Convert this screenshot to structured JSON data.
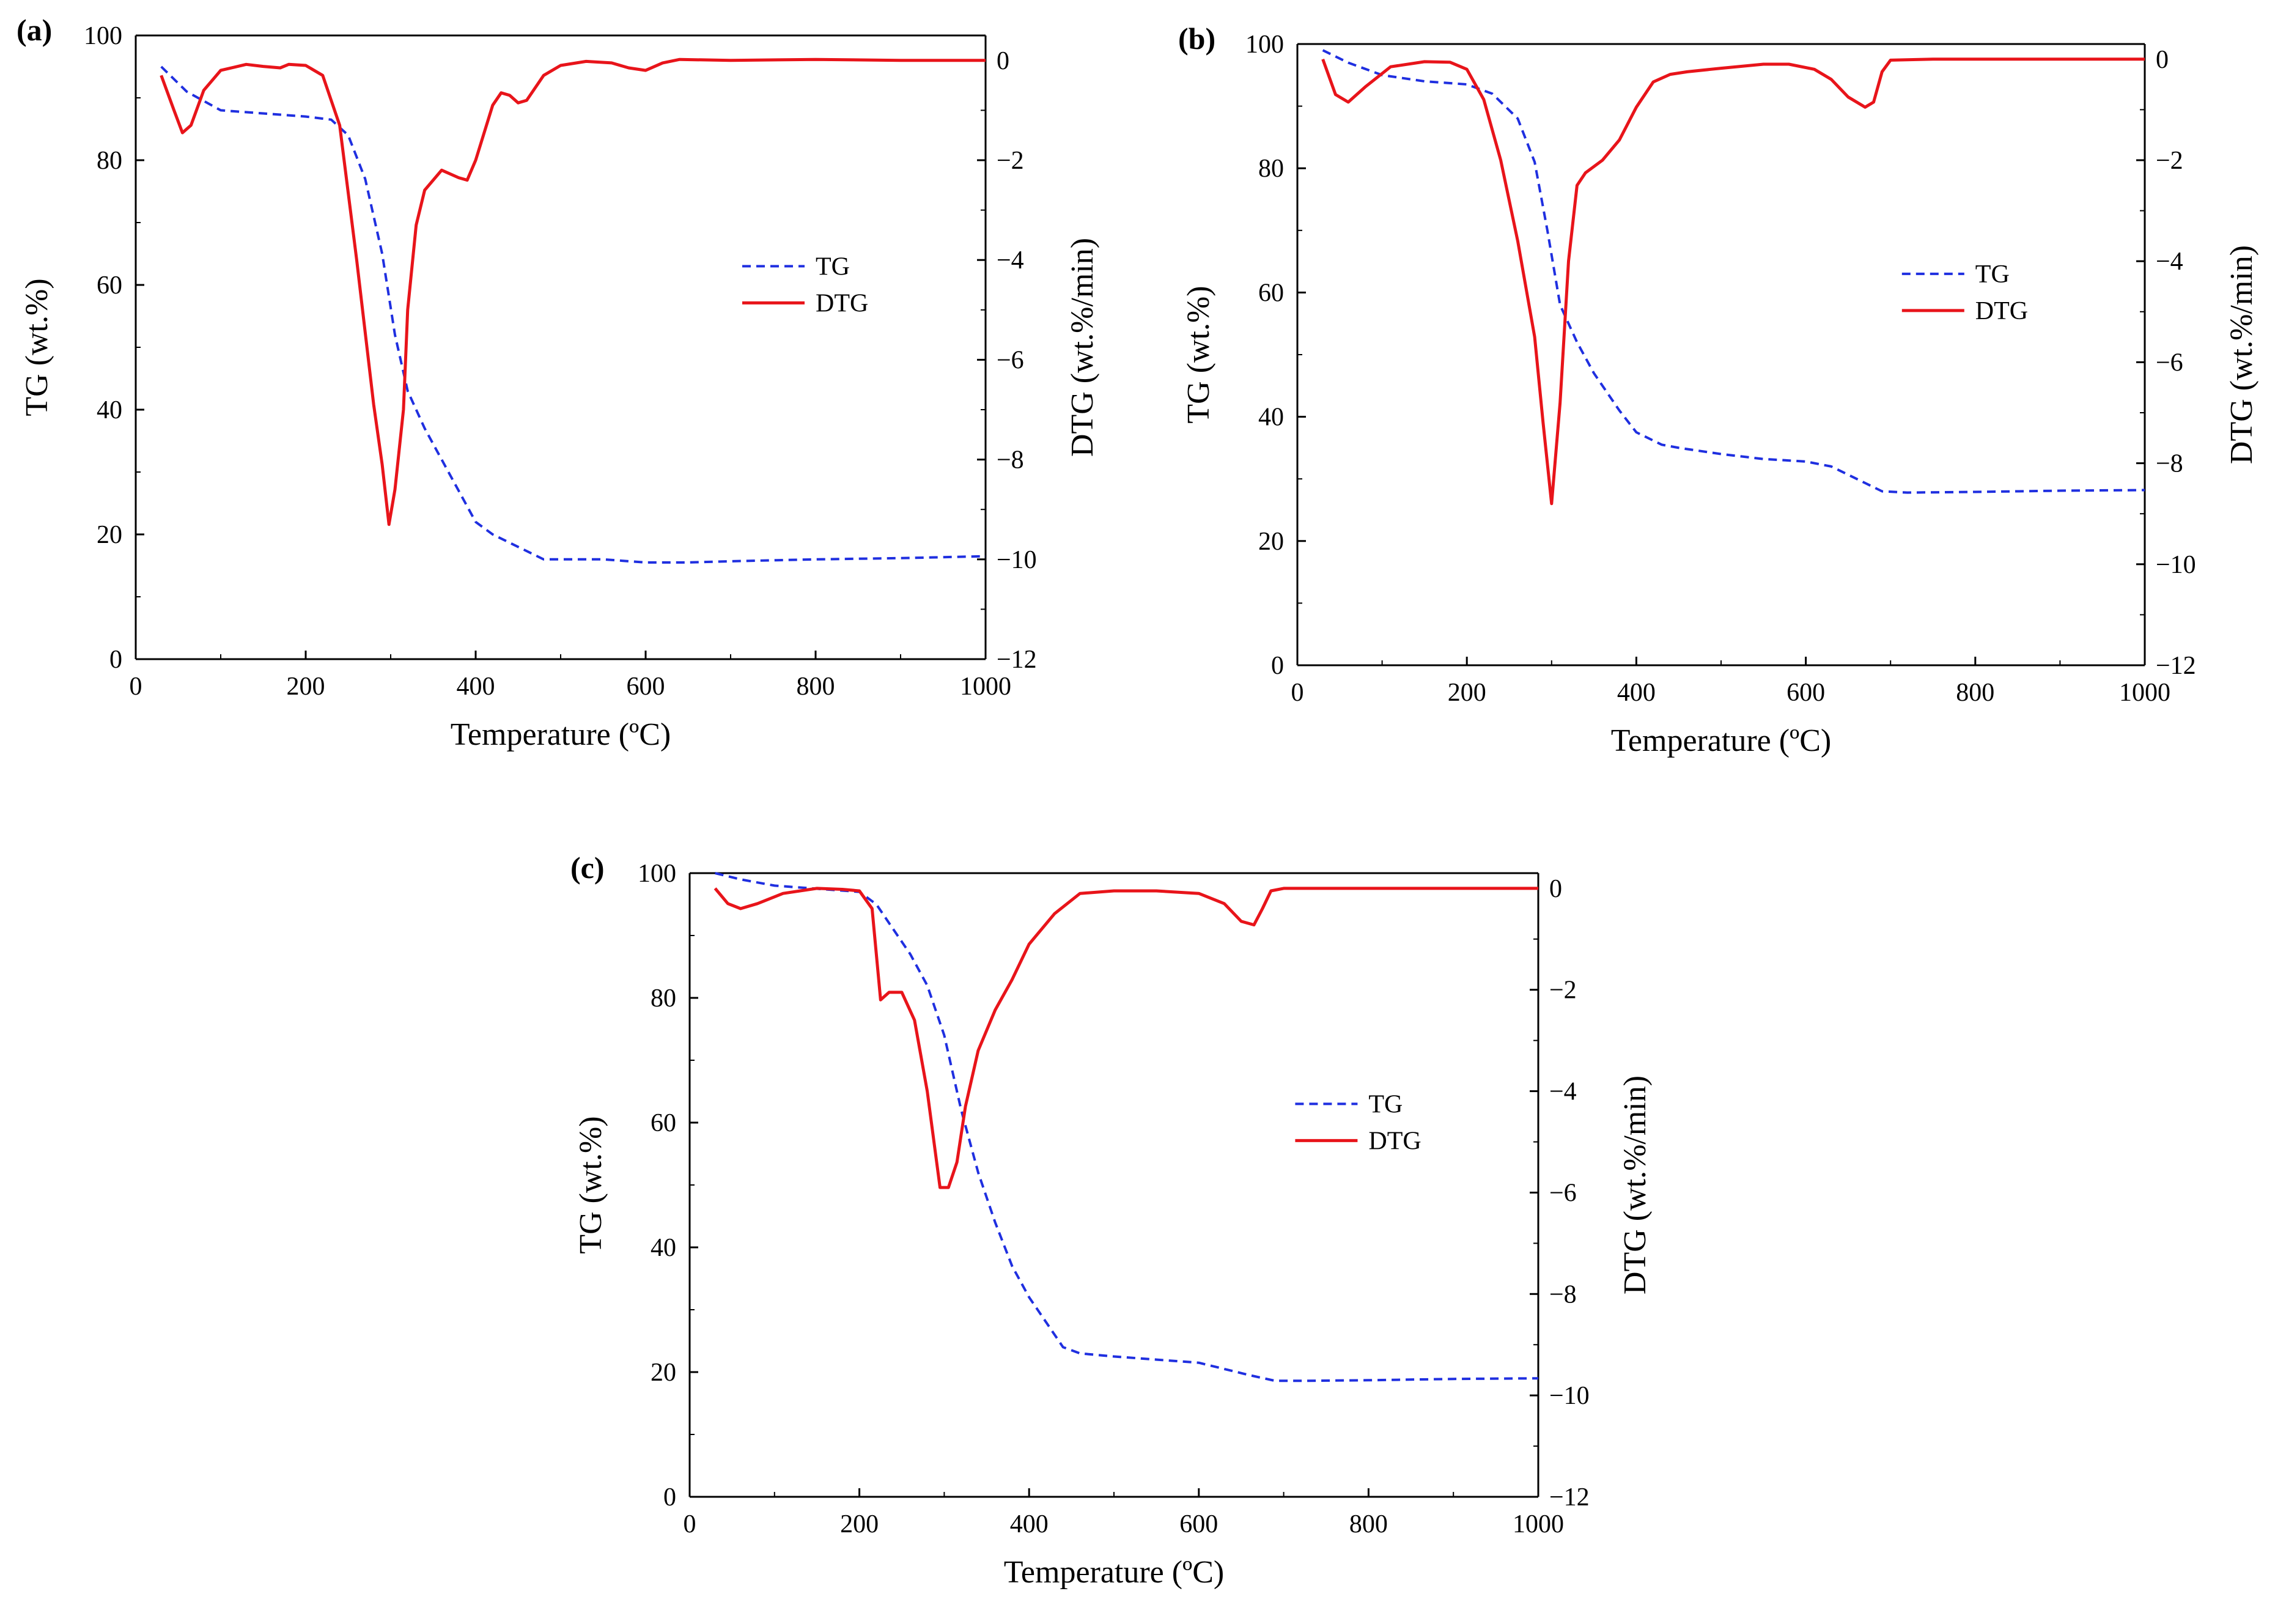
{
  "figure": "TG/DTG thermograms",
  "colors": {
    "tg": "#1f2fe0",
    "dtg": "#e8141a",
    "axis": "#000000"
  },
  "chart_data": [
    {
      "id": "a",
      "panel_label": "(a)",
      "type": "line",
      "xlabel": "Temperature (ºC)",
      "ylabel": "TG (wt.%)",
      "y2label": "DTG (wt.%/min)",
      "xlim": [
        0,
        1000
      ],
      "ylim": [
        0,
        100
      ],
      "y2lim": [
        -12,
        0.5
      ],
      "xticks": [
        0,
        200,
        400,
        600,
        800,
        1000
      ],
      "yticks": [
        0,
        20,
        40,
        60,
        80,
        100
      ],
      "y2ticks": [
        -12,
        -10,
        -8,
        -6,
        -4,
        -2,
        0
      ],
      "y2tick_labels": [
        "−12",
        "−10",
        "−8",
        "−6",
        "−4",
        "−2",
        "0"
      ],
      "legend": [
        "TG",
        "DTG"
      ],
      "series": [
        {
          "name": "TG",
          "axis": "left",
          "style": "dashed",
          "x": [
            30,
            60,
            100,
            150,
            200,
            230,
            250,
            270,
            290,
            305,
            320,
            340,
            360,
            380,
            400,
            420,
            450,
            480,
            550,
            600,
            650,
            700,
            800,
            900,
            1000
          ],
          "y": [
            95,
            91,
            88,
            87.5,
            87,
            86.5,
            84,
            77,
            65,
            52,
            43,
            37,
            32,
            27,
            22,
            20,
            18,
            16,
            16,
            15.5,
            15.5,
            15.7,
            16,
            16.2,
            16.5
          ]
        },
        {
          "name": "DTG",
          "axis": "right",
          "style": "solid",
          "x": [
            30,
            45,
            55,
            65,
            80,
            100,
            130,
            150,
            170,
            180,
            200,
            220,
            240,
            260,
            280,
            290,
            298,
            305,
            315,
            320,
            330,
            340,
            360,
            380,
            390,
            400,
            420,
            430,
            440,
            450,
            460,
            480,
            500,
            530,
            560,
            580,
            600,
            620,
            640,
            700,
            800,
            900,
            1000
          ],
          "y": [
            -0.3,
            -1.0,
            -1.45,
            -1.3,
            -0.6,
            -0.2,
            -0.08,
            -0.12,
            -0.15,
            -0.08,
            -0.1,
            -0.3,
            -1.3,
            -4.0,
            -6.9,
            -8.1,
            -9.3,
            -8.6,
            -7.0,
            -5.0,
            -3.3,
            -2.6,
            -2.2,
            -2.35,
            -2.4,
            -2.0,
            -0.9,
            -0.65,
            -0.7,
            -0.85,
            -0.8,
            -0.3,
            -0.1,
            -0.02,
            -0.05,
            -0.15,
            -0.2,
            -0.05,
            0.02,
            0.0,
            0.02,
            0.0,
            0.0
          ]
        }
      ]
    },
    {
      "id": "b",
      "panel_label": "(b)",
      "type": "line",
      "xlabel": "Temperature (ºC)",
      "ylabel": "TG (wt.%)",
      "y2label": "DTG (wt.%/min)",
      "xlim": [
        0,
        1000
      ],
      "ylim": [
        0,
        100
      ],
      "y2lim": [
        -12,
        0.3
      ],
      "xticks": [
        0,
        200,
        400,
        600,
        800,
        1000
      ],
      "yticks": [
        0,
        20,
        40,
        60,
        80,
        100
      ],
      "y2ticks": [
        -12,
        -10,
        -8,
        -6,
        -4,
        -2,
        0
      ],
      "y2tick_labels": [
        "−12",
        "−10",
        "−8",
        "−6",
        "−4",
        "−2",
        "0"
      ],
      "legend": [
        "TG",
        "DTG"
      ],
      "series": [
        {
          "name": "TG",
          "axis": "left",
          "style": "dashed",
          "x": [
            30,
            60,
            100,
            150,
            200,
            230,
            260,
            280,
            295,
            310,
            330,
            350,
            380,
            400,
            430,
            450,
            500,
            550,
            600,
            630,
            660,
            690,
            720,
            800,
            900,
            1000
          ],
          "y": [
            99,
            97,
            95,
            94,
            93.5,
            92,
            88,
            81,
            70,
            58,
            52,
            47,
            41,
            37.5,
            35.5,
            35,
            34,
            33.2,
            32.8,
            32,
            30,
            28,
            27.8,
            27.9,
            28.1,
            28.2
          ]
        },
        {
          "name": "DTG",
          "axis": "right",
          "style": "solid",
          "x": [
            30,
            45,
            60,
            80,
            110,
            150,
            180,
            200,
            220,
            240,
            260,
            280,
            290,
            300,
            310,
            320,
            330,
            340,
            360,
            380,
            400,
            420,
            440,
            460,
            500,
            550,
            580,
            610,
            630,
            650,
            670,
            680,
            690,
            700,
            750,
            800,
            900,
            1000
          ],
          "y": [
            0.0,
            -0.7,
            -0.85,
            -0.55,
            -0.15,
            -0.05,
            -0.06,
            -0.2,
            -0.8,
            -2.0,
            -3.6,
            -5.5,
            -7.2,
            -8.8,
            -6.8,
            -4.0,
            -2.5,
            -2.25,
            -2.0,
            -1.6,
            -0.95,
            -0.45,
            -0.3,
            -0.25,
            -0.18,
            -0.1,
            -0.1,
            -0.2,
            -0.4,
            -0.75,
            -0.95,
            -0.85,
            -0.25,
            -0.02,
            0.0,
            0.0,
            0.0,
            0.0
          ]
        }
      ]
    },
    {
      "id": "c",
      "panel_label": "(c)",
      "type": "line",
      "xlabel": "Temperature (ºC)",
      "ylabel": "TG (wt.%)",
      "y2label": "DTG (wt.%/min)",
      "xlim": [
        0,
        1000
      ],
      "ylim": [
        0,
        100
      ],
      "y2lim": [
        -12,
        0.3
      ],
      "xticks": [
        0,
        200,
        400,
        600,
        800,
        1000
      ],
      "yticks": [
        0,
        20,
        40,
        60,
        80,
        100
      ],
      "y2ticks": [
        -12,
        -10,
        -8,
        -6,
        -4,
        -2,
        0
      ],
      "y2tick_labels": [
        "−12",
        "−10",
        "−8",
        "−6",
        "−4",
        "−2",
        "0"
      ],
      "legend": [
        "TG",
        "DTG"
      ],
      "series": [
        {
          "name": "TG",
          "axis": "left",
          "style": "dashed",
          "x": [
            30,
            60,
            100,
            150,
            200,
            220,
            240,
            260,
            280,
            300,
            320,
            340,
            360,
            380,
            400,
            420,
            440,
            460,
            500,
            550,
            600,
            630,
            660,
            690,
            720,
            800,
            900,
            1000
          ],
          "y": [
            100,
            99,
            98,
            97.5,
            97,
            95,
            91,
            87,
            82,
            74,
            62,
            52,
            44,
            37,
            32,
            28,
            24,
            23,
            22.5,
            22,
            21.5,
            20.5,
            19.5,
            18.6,
            18.6,
            18.7,
            18.9,
            19
          ]
        },
        {
          "name": "DTG",
          "axis": "right",
          "style": "solid",
          "x": [
            30,
            45,
            60,
            80,
            110,
            150,
            180,
            200,
            215,
            225,
            235,
            250,
            265,
            280,
            295,
            305,
            315,
            325,
            340,
            360,
            380,
            400,
            430,
            460,
            500,
            550,
            600,
            630,
            650,
            665,
            675,
            685,
            700,
            800,
            900,
            1000
          ],
          "y": [
            0.0,
            -0.3,
            -0.4,
            -0.3,
            -0.1,
            0.0,
            -0.02,
            -0.05,
            -0.4,
            -2.2,
            -2.05,
            -2.05,
            -2.6,
            -4.0,
            -5.9,
            -5.9,
            -5.4,
            -4.3,
            -3.2,
            -2.4,
            -1.8,
            -1.1,
            -0.5,
            -0.1,
            -0.05,
            -0.05,
            -0.1,
            -0.3,
            -0.65,
            -0.72,
            -0.4,
            -0.05,
            0.0,
            0.0,
            0.0,
            0.0
          ]
        }
      ]
    }
  ]
}
